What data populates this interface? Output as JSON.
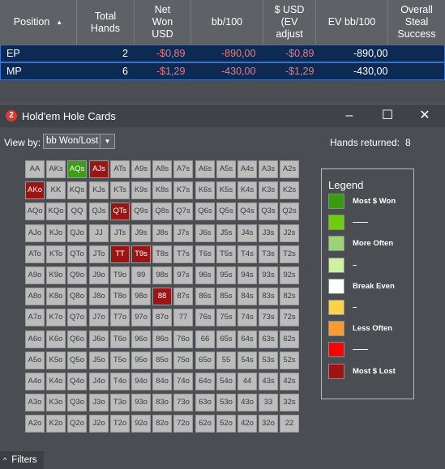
{
  "stats_table": {
    "columns": [
      "Position",
      "Total\nHands",
      "Net\nWon\nUSD",
      "bb/100",
      "$ USD\n(EV\nadjust",
      "EV bb/100",
      "Overall\nSteal\nSuccess"
    ],
    "rows": [
      {
        "position": "EP",
        "total_hands": "2",
        "net_won": "-$0,89",
        "bb100": "-890,00",
        "ev_usd": "-$0,89",
        "ev_bb100": "-890,00"
      },
      {
        "position": "MP",
        "total_hands": "6",
        "net_won": "-$1,29",
        "bb100": "-430,00",
        "ev_usd": "-$1,29",
        "ev_bb100": "-430,00"
      }
    ]
  },
  "window": {
    "app_logo": "2",
    "title": "Hold'em Hole Cards",
    "view_by_label": "View by:",
    "view_by_value": "bb Won/Lost",
    "hands_returned_label": "Hands returned:",
    "hands_returned_value": "8"
  },
  "grid": [
    [
      "AA",
      "AKs",
      "AQs",
      "AJs",
      "ATs",
      "A9s",
      "A8s",
      "A7s",
      "A6s",
      "A5s",
      "A4s",
      "A3s",
      "A2s"
    ],
    [
      "AKo",
      "KK",
      "KQs",
      "KJs",
      "KTs",
      "K9s",
      "K8s",
      "K7s",
      "K6s",
      "K5s",
      "K4s",
      "K3s",
      "K2s"
    ],
    [
      "AQo",
      "KQo",
      "QQ",
      "QJs",
      "QTs",
      "Q9s",
      "Q8s",
      "Q7s",
      "Q6s",
      "Q5s",
      "Q4s",
      "Q3s",
      "Q2s"
    ],
    [
      "AJo",
      "KJo",
      "QJo",
      "JJ",
      "JTs",
      "J9s",
      "J8s",
      "J7s",
      "J6s",
      "J5s",
      "J4s",
      "J3s",
      "J2s"
    ],
    [
      "ATo",
      "KTo",
      "QTo",
      "JTo",
      "TT",
      "T9s",
      "T8s",
      "T7s",
      "T6s",
      "T5s",
      "T4s",
      "T3s",
      "T2s"
    ],
    [
      "A9o",
      "K9o",
      "Q9o",
      "J9o",
      "T9o",
      "99",
      "98s",
      "97s",
      "96s",
      "95s",
      "94s",
      "93s",
      "92s"
    ],
    [
      "A8o",
      "K8o",
      "Q8o",
      "J8o",
      "T8o",
      "98o",
      "88",
      "87s",
      "86s",
      "85s",
      "84s",
      "83s",
      "82s"
    ],
    [
      "A7o",
      "K7o",
      "Q7o",
      "J7o",
      "T7o",
      "97o",
      "87o",
      "77",
      "76s",
      "75s",
      "74s",
      "73s",
      "72s"
    ],
    [
      "A6o",
      "K6o",
      "Q6o",
      "J6o",
      "T6o",
      "96o",
      "86o",
      "76o",
      "66",
      "65s",
      "64s",
      "63s",
      "62s"
    ],
    [
      "A5o",
      "K5o",
      "Q5o",
      "J5o",
      "T5o",
      "95o",
      "85o",
      "75o",
      "65o",
      "55",
      "54s",
      "53s",
      "52s"
    ],
    [
      "A4o",
      "K4o",
      "Q4o",
      "J4o",
      "T4o",
      "94o",
      "84o",
      "74o",
      "64o",
      "54o",
      "44",
      "43s",
      "42s"
    ],
    [
      "A3o",
      "K3o",
      "Q3o",
      "J3o",
      "T3o",
      "93o",
      "83o",
      "73o",
      "63o",
      "53o",
      "43o",
      "33",
      "32s"
    ],
    [
      "A2o",
      "K2o",
      "Q2o",
      "J2o",
      "T2o",
      "92o",
      "82o",
      "72o",
      "62o",
      "52o",
      "42o",
      "32o",
      "22"
    ]
  ],
  "highlighted": {
    "green": [
      "AQs"
    ],
    "red": [
      "AJs",
      "AKo",
      "QTs",
      "TT",
      "T9s",
      "88"
    ]
  },
  "legend": {
    "title": "Legend",
    "items": [
      {
        "label": "Most $ Won",
        "color": "#3a9a12"
      },
      {
        "label": "——",
        "color": "#6fcc10"
      },
      {
        "label": "More Often",
        "color": "#9dd37a"
      },
      {
        "label": "–",
        "color": "#cff2a0"
      },
      {
        "label": "Break Even",
        "color": "#ffffff"
      },
      {
        "label": "–",
        "color": "#ffd24a"
      },
      {
        "label": "Less Often",
        "color": "#ff9a2e"
      },
      {
        "label": "——",
        "color": "#ff0000"
      },
      {
        "label": "Most $ Lost",
        "color": "#9b1515"
      }
    ]
  },
  "footer": {
    "filters_label": "Filters"
  }
}
